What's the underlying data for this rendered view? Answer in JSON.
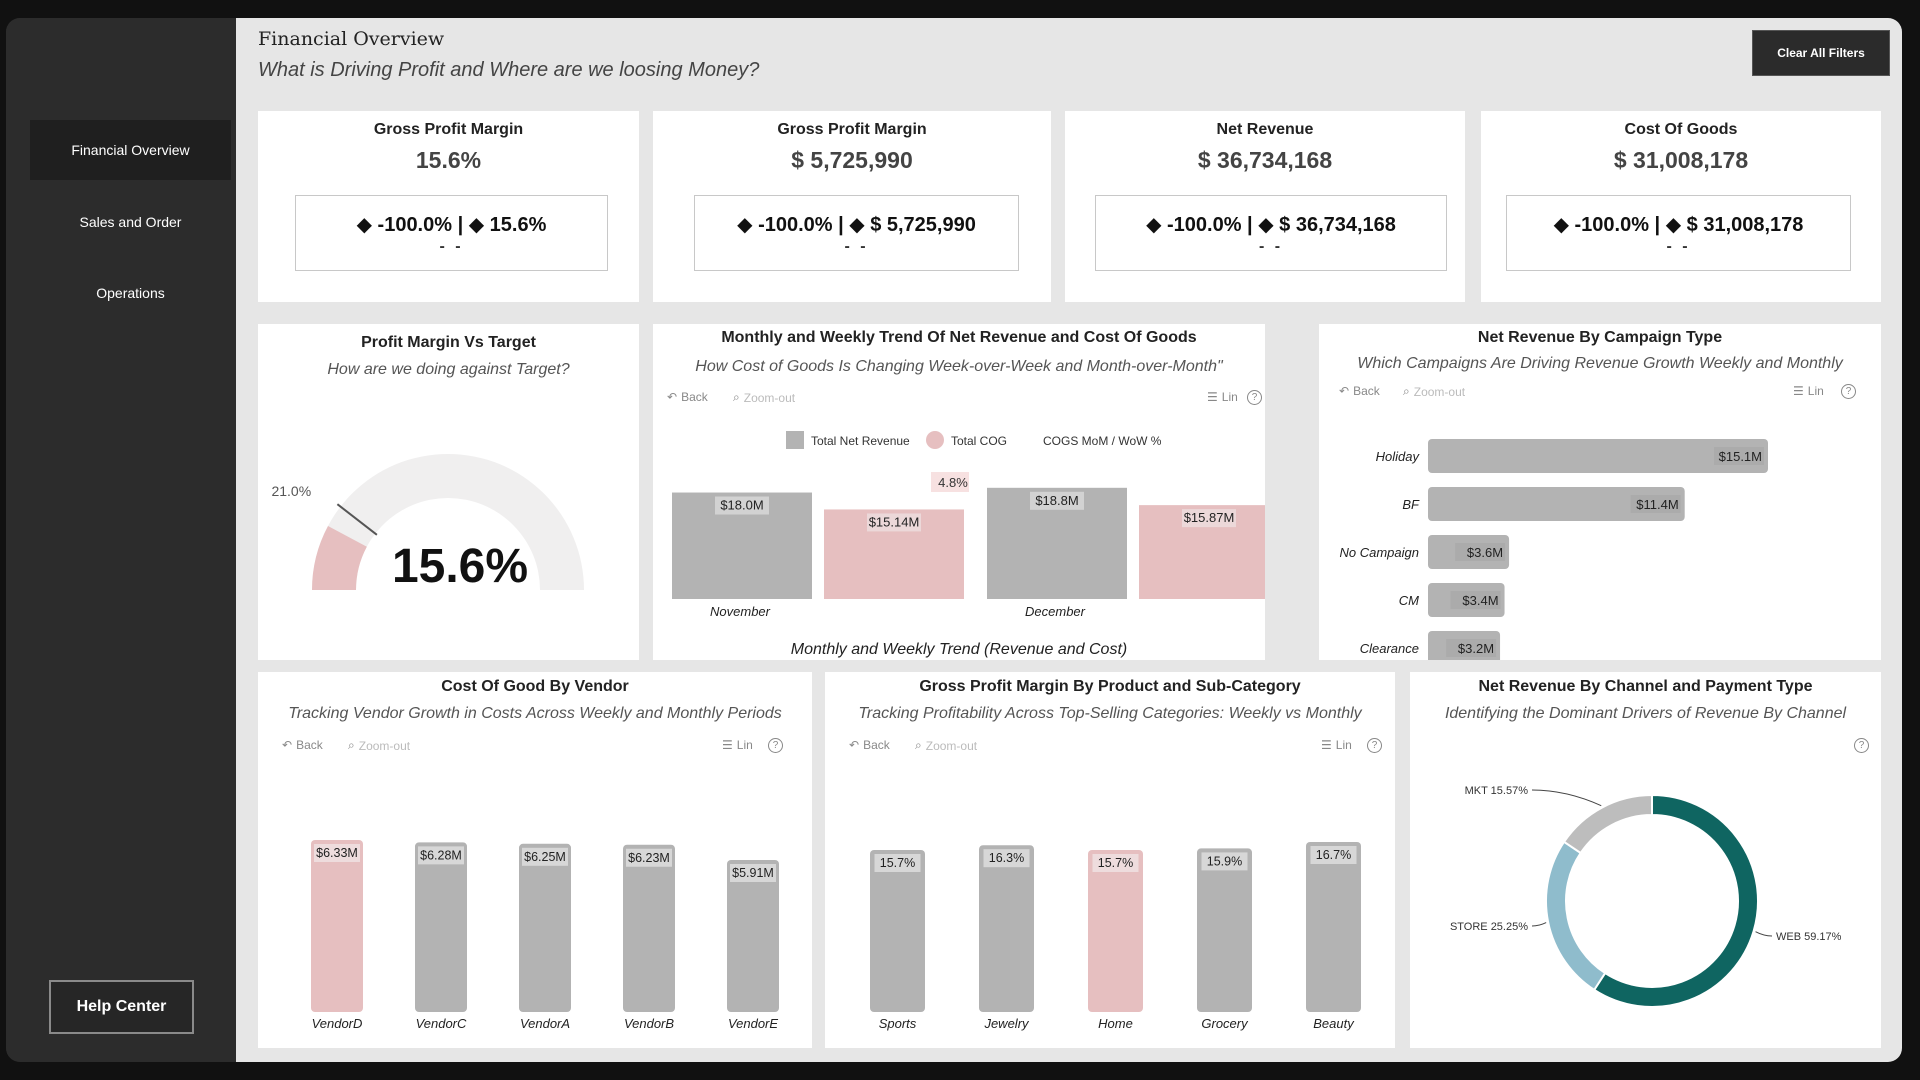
{
  "sidebar": {
    "items": [
      {
        "label": "Financial Overview",
        "active": true
      },
      {
        "label": "Sales and Order",
        "active": false
      },
      {
        "label": "Operations",
        "active": false
      }
    ],
    "help_label": "Help Center"
  },
  "header": {
    "title": "Financial Overview",
    "subtitle": "What is Driving Profit and Where are we loosing Money?",
    "clear_filters": "Clear All Filters"
  },
  "toolbar": {
    "back": "Back",
    "zoom": "Zoom-out",
    "lin": "Lin",
    "help": "?"
  },
  "kpis": [
    {
      "title": "Gross Profit Margin",
      "value": "15.6%",
      "delta": "◆ -100.0% | ◆ 15.6%",
      "dash": "- -"
    },
    {
      "title": "Gross Profit Margin",
      "value": "$ 5,725,990",
      "delta": "◆ -100.0% | ◆ $ 5,725,990",
      "dash": "- -"
    },
    {
      "title": "Net Revenue",
      "value": "$ 36,734,168",
      "delta": "◆ -100.0% | ◆ $ 36,734,168",
      "dash": "- -"
    },
    {
      "title": "Cost Of Goods",
      "value": "$ 31,008,178",
      "delta": "◆ -100.0% | ◆ $ 31,008,178",
      "dash": "- -"
    }
  ],
  "gauge": {
    "title": "Profit Margin Vs Target",
    "subtitle": "How are we doing against Target?",
    "value": 15.6,
    "value_label": "15.6%",
    "target": 21.0,
    "target_label": "21.0%",
    "max": 100
  },
  "colors": {
    "gray": "#b3b3b3",
    "pink": "#e6bfc0",
    "teal": "#0f6561",
    "lightblue": "#8fbccc",
    "lightgray": "#bdbdbd"
  },
  "chart_data": [
    {
      "id": "trend",
      "type": "bar",
      "title": "Monthly and Weekly Trend Of Net Revenue and Cost Of Goods",
      "subtitle": "How Cost of Goods Is Changing Week-over-Week and Month-over-Month\"",
      "legend": [
        "Total Net Revenue",
        "Total COG",
        "COGS MoM / WoW %"
      ],
      "categories": [
        "November",
        "December"
      ],
      "series": [
        {
          "name": "Total Net Revenue",
          "values": [
            18.0,
            18.8
          ],
          "labels": [
            "$18.0M",
            "$18.8M"
          ]
        },
        {
          "name": "Total COG",
          "values": [
            15.14,
            15.87
          ],
          "labels": [
            "$15.14M",
            "$15.87M"
          ]
        }
      ],
      "annotation": "4.8%",
      "xlabel": "Monthly and Weekly Trend (Revenue and Cost)"
    },
    {
      "id": "campaign",
      "type": "bar",
      "orientation": "horizontal",
      "title": "Net Revenue By Campaign Type",
      "subtitle": "Which Campaigns Are Driving Revenue Growth Weekly and Monthly",
      "categories": [
        "Holiday",
        "BF",
        "No Campaign",
        "CM",
        "Clearance"
      ],
      "values": [
        15.1,
        11.4,
        3.6,
        3.4,
        3.2
      ],
      "labels": [
        "$15.1M",
        "$11.4M",
        "$3.6M",
        "$3.4M",
        "$3.2M"
      ]
    },
    {
      "id": "vendor",
      "type": "bar",
      "title": "Cost Of Good By Vendor",
      "subtitle": "Tracking Vendor Growth in Costs Across Weekly and Monthly Periods",
      "categories": [
        "VendorD",
        "VendorC",
        "VendorA",
        "VendorB",
        "VendorE"
      ],
      "values": [
        6.33,
        6.28,
        6.25,
        6.23,
        5.91
      ],
      "labels": [
        "$6.33M",
        "$6.28M",
        "$6.25M",
        "$6.23M",
        "$5.91M"
      ],
      "highlight": 0
    },
    {
      "id": "product",
      "type": "bar",
      "title": "Gross Profit Margin By Product and Sub-Category",
      "subtitle": "Tracking Profitability  Across Top-Selling Categories: Weekly vs Monthly",
      "categories": [
        "Sports",
        "Jewelry",
        "Home",
        "Grocery",
        "Beauty"
      ],
      "values": [
        15.7,
        16.3,
        15.7,
        15.9,
        16.7
      ],
      "labels": [
        "15.7%",
        "16.3%",
        "15.7%",
        "15.9%",
        "16.7%"
      ],
      "highlight": 2
    },
    {
      "id": "channel",
      "type": "pie",
      "title": "Net Revenue By Channel and Payment Type",
      "subtitle": "Identifying the Dominant Drivers of Revenue By Channel",
      "categories": [
        "WEB",
        "STORE",
        "MKT"
      ],
      "values": [
        59.17,
        25.25,
        15.57
      ],
      "labels": [
        "WEB 59.17%",
        "STORE 25.25%",
        "MKT 15.57%"
      ]
    }
  ]
}
